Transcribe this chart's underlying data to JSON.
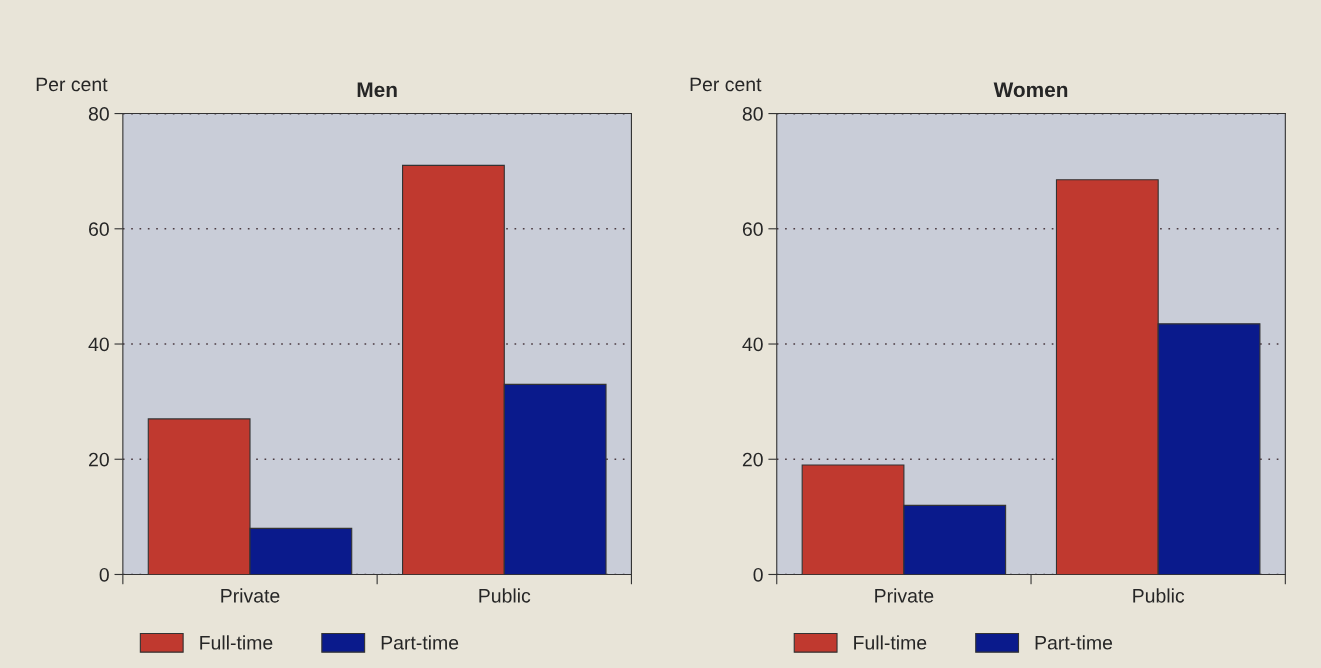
{
  "chart_data": [
    {
      "type": "bar",
      "title": "Men",
      "ylabel": "Per cent",
      "categories": [
        "Private",
        "Public"
      ],
      "series": [
        {
          "name": "Full-time",
          "color": "#c0392f",
          "values": [
            27,
            71
          ]
        },
        {
          "name": "Part-time",
          "color": "#0a1a8c",
          "values": [
            8,
            33
          ]
        }
      ],
      "ylim": [
        0,
        80
      ],
      "yticks": [
        0,
        20,
        40,
        60,
        80
      ],
      "grid": "y",
      "legend": "bottom"
    },
    {
      "type": "bar",
      "title": "Women",
      "ylabel": "Per cent",
      "categories": [
        "Private",
        "Public"
      ],
      "series": [
        {
          "name": "Full-time",
          "color": "#c0392f",
          "values": [
            19,
            68.5
          ]
        },
        {
          "name": "Part-time",
          "color": "#0a1a8c",
          "values": [
            12,
            43.5
          ]
        }
      ],
      "ylim": [
        0,
        80
      ],
      "yticks": [
        0,
        20,
        40,
        60,
        80
      ],
      "grid": "y",
      "legend": "bottom"
    }
  ]
}
